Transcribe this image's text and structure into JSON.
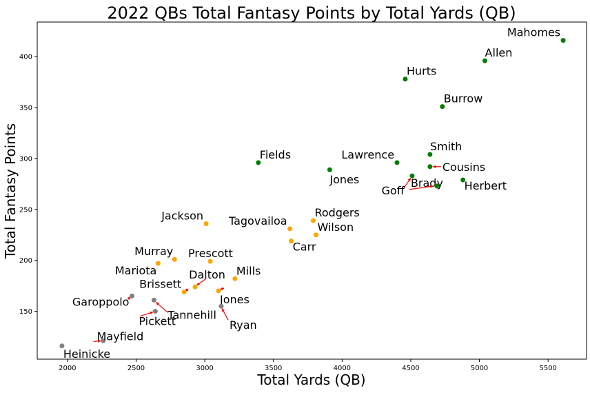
{
  "chart_data": {
    "type": "scatter",
    "title": "2022 QBs Total Fantasy Points by Total Yards (QB)",
    "xlabel": "Total Yards (QB)",
    "ylabel": "Total Fantasy Points",
    "xlim": [
      1780,
      5780
    ],
    "ylim": [
      103,
      434
    ],
    "xticks": [
      2000,
      2500,
      3000,
      3500,
      4000,
      4500,
      5000,
      5500
    ],
    "yticks": [
      150,
      200,
      250,
      300,
      350,
      400
    ],
    "grid": false,
    "colors": {
      "green": "#008000",
      "orange": "#ffa500",
      "gray": "#808080",
      "arrow": "#ff0000"
    },
    "points": [
      {
        "label": "Mahomes",
        "x": 5610,
        "y": 416,
        "group": "green"
      },
      {
        "label": "Allen",
        "x": 5040,
        "y": 396,
        "group": "green"
      },
      {
        "label": "Hurts",
        "x": 4460,
        "y": 378,
        "group": "green"
      },
      {
        "label": "Burrow",
        "x": 4730,
        "y": 351,
        "group": "green"
      },
      {
        "label": "Smith",
        "x": 4640,
        "y": 304,
        "group": "green"
      },
      {
        "label": "Fields",
        "x": 3390,
        "y": 296,
        "group": "green"
      },
      {
        "label": "Lawrence",
        "x": 4400,
        "y": 296,
        "group": "green"
      },
      {
        "label": "Cousins",
        "x": 4640,
        "y": 292,
        "group": "green"
      },
      {
        "label": "Jones",
        "x": 3910,
        "y": 289,
        "group": "green"
      },
      {
        "label": "Brady",
        "x": 4510,
        "y": 283,
        "group": "green"
      },
      {
        "label": "Herbert",
        "x": 4880,
        "y": 279,
        "group": "green"
      },
      {
        "label": "Goff",
        "x": 4690,
        "y": 273,
        "group": "green"
      },
      {
        "label": "Rodgers",
        "x": 3790,
        "y": 239,
        "group": "orange"
      },
      {
        "label": "Jackson",
        "x": 3010,
        "y": 236,
        "group": "orange"
      },
      {
        "label": "Tagovailoa",
        "x": 3620,
        "y": 231,
        "group": "orange"
      },
      {
        "label": "Wilson",
        "x": 3810,
        "y": 225,
        "group": "orange"
      },
      {
        "label": "Carr",
        "x": 3630,
        "y": 219,
        "group": "orange"
      },
      {
        "label": "Murray",
        "x": 2780,
        "y": 201,
        "group": "orange"
      },
      {
        "label": "Prescott",
        "x": 3040,
        "y": 199,
        "group": "orange"
      },
      {
        "label": "Mariota",
        "x": 2660,
        "y": 197,
        "group": "orange"
      },
      {
        "label": "Mills",
        "x": 3220,
        "y": 182,
        "group": "orange"
      },
      {
        "label": "Dalton",
        "x": 2930,
        "y": 174,
        "group": "orange"
      },
      {
        "label": "Jones",
        "x": 3100,
        "y": 170,
        "group": "orange"
      },
      {
        "label": "Brissett",
        "x": 2850,
        "y": 169,
        "group": "orange"
      },
      {
        "label": "Garoppolo",
        "x": 2470,
        "y": 165,
        "group": "gray"
      },
      {
        "label": "Tannehill",
        "x": 2630,
        "y": 161,
        "group": "gray"
      },
      {
        "label": "Ryan",
        "x": 3120,
        "y": 155,
        "group": "gray"
      },
      {
        "label": "Pickett",
        "x": 2640,
        "y": 150,
        "group": "gray"
      },
      {
        "label": "Mayfield",
        "x": 2260,
        "y": 121,
        "group": "gray"
      },
      {
        "label": "Heinicke",
        "x": 1960,
        "y": 116,
        "group": "gray"
      }
    ]
  }
}
